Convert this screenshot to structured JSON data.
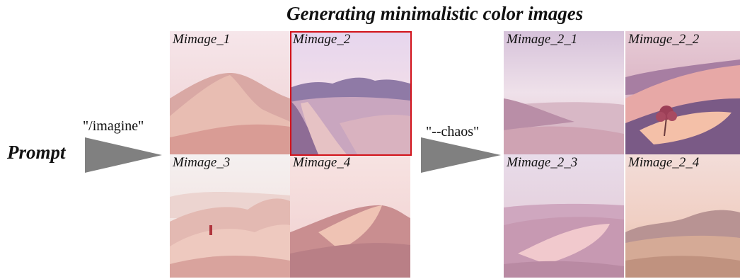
{
  "title": "Generating minimalistic color images",
  "prompt_label": "Prompt",
  "commands": {
    "imagine": "\"/imagine\"",
    "chaos": "\"--chaos\""
  },
  "colors": {
    "arrow": "#808080",
    "selection": "#d2121a"
  },
  "grid1": [
    {
      "label": "Mimage_1",
      "selected": false
    },
    {
      "label": "Mimage_2",
      "selected": true
    },
    {
      "label": "Mimage_3",
      "selected": false
    },
    {
      "label": "Mimage_4",
      "selected": false
    }
  ],
  "grid2": [
    {
      "label": "Mimage_2_1"
    },
    {
      "label": "Mimage_2_2"
    },
    {
      "label": "Mimage_2_3"
    },
    {
      "label": "Mimage_2_4"
    }
  ]
}
